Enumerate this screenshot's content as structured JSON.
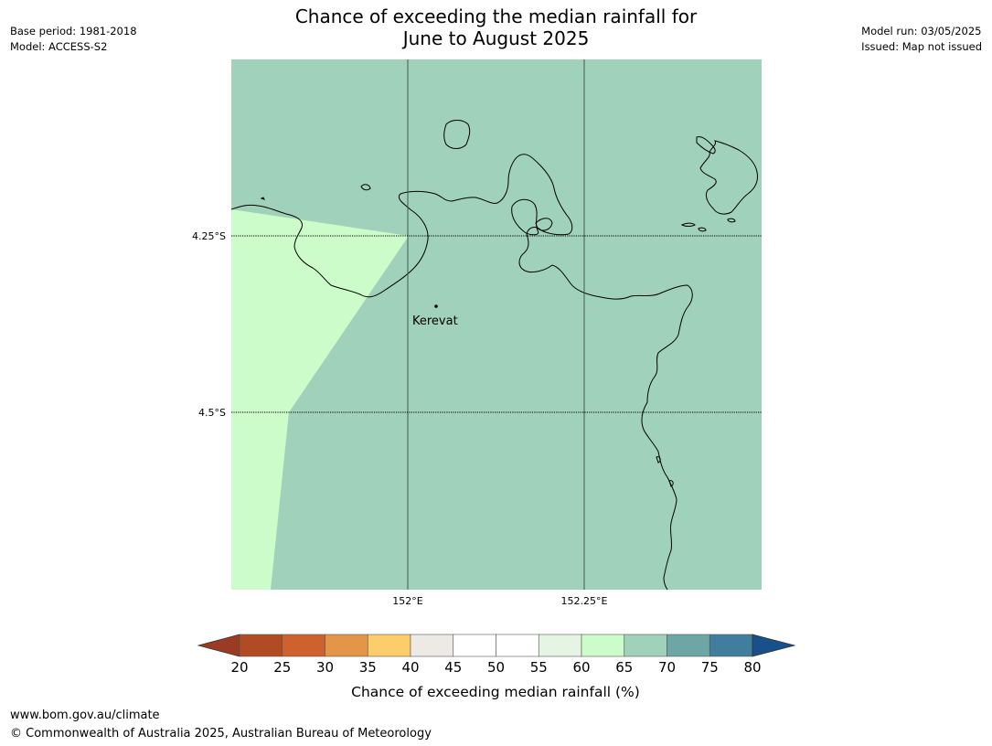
{
  "header": {
    "title_line1": "Chance of exceeding the median rainfall for",
    "title_line2": "June to August 2025",
    "base_period": "Base period: 1981-2018",
    "model": "Model: ACCESS-S2",
    "model_run": "Model run: 03/05/2025",
    "issued": "Issued: Map not issued"
  },
  "map": {
    "lat_labels": [
      "4.25°S",
      "4.5°S"
    ],
    "lon_labels": [
      "152°E",
      "152.25°E"
    ],
    "place": "Kerevat",
    "colors": {
      "ocean_65_70": "#9fd1bb",
      "zone_60_65": "#ccfcc9",
      "coastline": "#000000"
    }
  },
  "colorbar": {
    "label": "Chance of exceeding median rainfall (%)",
    "ticks": [
      "20",
      "25",
      "30",
      "35",
      "40",
      "45",
      "50",
      "55",
      "60",
      "65",
      "70",
      "75",
      "80"
    ],
    "under_color": "#9b3b23",
    "over_color": "#17508a",
    "colors": [
      "#b04b24",
      "#cd622f",
      "#e3954a",
      "#fdcd6b",
      "#ede9e5",
      "#ffffff",
      "#ffffff",
      "#e6f5e3",
      "#ccfcc9",
      "#9fd1bb",
      "#6da6a5",
      "#417d9c"
    ]
  },
  "footer": {
    "url": "www.bom.gov.au/climate",
    "copyright": "© Commonwealth of Australia 2025, Australian Bureau of Meteorology"
  }
}
